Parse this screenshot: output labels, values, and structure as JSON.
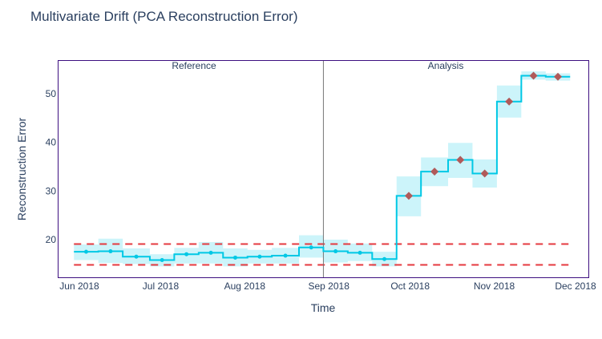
{
  "chart_data": {
    "type": "line",
    "title": "Multivariate Drift (PCA Reconstruction Error)",
    "xlabel": "Time",
    "ylabel": "Reconstruction Error",
    "x_ticks": [
      "Jun 2018",
      "Jul 2018",
      "Aug 2018",
      "Sep 2018",
      "Oct 2018",
      "Nov 2018",
      "Dec 2018"
    ],
    "y_ticks": [
      20,
      30,
      40,
      50
    ],
    "ylim": [
      11.8,
      56.5
    ],
    "grid": false,
    "legend": "none",
    "sections": [
      "Reference",
      "Analysis"
    ],
    "colors": {
      "line": "#00c8e5",
      "band": "#00c8e5",
      "alert_marker": "#b05a5a",
      "threshold": "#e5393f",
      "frame": "#3d0f80",
      "divider": "#777777"
    },
    "thresholds": {
      "upper": 19.1,
      "lower": 14.8
    },
    "chunks": [
      {
        "section": "Reference",
        "start": "2018-05-30",
        "value": 17.5,
        "band": [
          15.8,
          19.0
        ],
        "alert": false
      },
      {
        "section": "Reference",
        "start": "2018-06-08",
        "value": 17.6,
        "band": [
          15.2,
          20.2
        ],
        "alert": false
      },
      {
        "section": "Reference",
        "start": "2018-06-17",
        "value": 16.5,
        "band": [
          15.0,
          18.2
        ],
        "alert": false
      },
      {
        "section": "Reference",
        "start": "2018-06-27",
        "value": 15.8,
        "band": [
          14.5,
          17.0
        ],
        "alert": false
      },
      {
        "section": "Reference",
        "start": "2018-07-06",
        "value": 17.0,
        "band": [
          15.1,
          18.3
        ],
        "alert": false
      },
      {
        "section": "Reference",
        "start": "2018-07-15",
        "value": 17.3,
        "band": [
          15.1,
          19.5
        ],
        "alert": false
      },
      {
        "section": "Reference",
        "start": "2018-07-24",
        "value": 16.3,
        "band": [
          14.5,
          18.2
        ],
        "alert": false
      },
      {
        "section": "Reference",
        "start": "2018-08-02",
        "value": 16.5,
        "band": [
          15.1,
          17.9
        ],
        "alert": false
      },
      {
        "section": "Reference",
        "start": "2018-08-11",
        "value": 16.7,
        "band": [
          15.1,
          18.3
        ],
        "alert": false
      },
      {
        "section": "Reference",
        "start": "2018-08-21",
        "value": 18.4,
        "band": [
          16.3,
          20.9
        ],
        "alert": false
      },
      {
        "section": "Analysis",
        "start": "2018-08-30",
        "value": 17.6,
        "band": [
          15.3,
          20.0
        ],
        "alert": false
      },
      {
        "section": "Analysis",
        "start": "2018-09-08",
        "value": 17.3,
        "band": [
          15.6,
          19.2
        ],
        "alert": false
      },
      {
        "section": "Analysis",
        "start": "2018-09-17",
        "value": 16.0,
        "band": [
          14.5,
          17.5
        ],
        "alert": false
      },
      {
        "section": "Analysis",
        "start": "2018-09-26",
        "value": 29.0,
        "band": [
          24.8,
          33.0
        ],
        "alert": true
      },
      {
        "section": "Analysis",
        "start": "2018-10-05",
        "value": 34.0,
        "band": [
          31.0,
          36.9
        ],
        "alert": true
      },
      {
        "section": "Analysis",
        "start": "2018-10-15",
        "value": 36.4,
        "band": [
          32.7,
          39.9
        ],
        "alert": true
      },
      {
        "section": "Analysis",
        "start": "2018-10-24",
        "value": 33.6,
        "band": [
          30.7,
          36.5
        ],
        "alert": true
      },
      {
        "section": "Analysis",
        "start": "2018-11-02",
        "value": 48.4,
        "band": [
          45.1,
          51.7
        ],
        "alert": true
      },
      {
        "section": "Analysis",
        "start": "2018-11-11",
        "value": 53.7,
        "band": [
          52.9,
          54.6
        ],
        "alert": true
      },
      {
        "section": "Analysis",
        "start": "2018-11-20",
        "value": 53.5,
        "band": [
          52.7,
          54.2
        ],
        "alert": true
      }
    ],
    "end": "2018-11-29"
  }
}
